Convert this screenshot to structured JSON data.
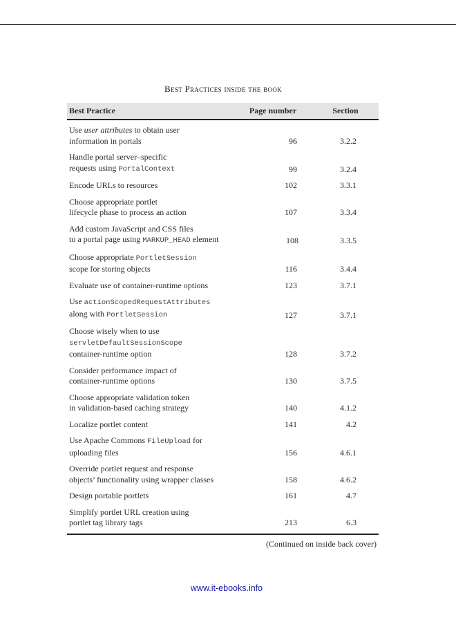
{
  "title": "Best Practices inside the book",
  "table": {
    "headers": [
      "Best Practice",
      "Page number",
      "Section"
    ],
    "rows": [
      {
        "lines": [
          [
            {
              "t": "Use "
            },
            {
              "t": "user attributes",
              "s": "it"
            },
            {
              "t": " to obtain user"
            }
          ],
          [
            {
              "t": "information in portals"
            }
          ]
        ],
        "page": "96",
        "section": "3.2.2"
      },
      {
        "lines": [
          [
            {
              "t": "Handle portal server–specific"
            }
          ],
          [
            {
              "t": "requests using "
            },
            {
              "t": "PortalContext",
              "s": "mono"
            }
          ]
        ],
        "page": "99",
        "section": "3.2.4"
      },
      {
        "lines": [
          [
            {
              "t": "Encode URLs to resources"
            }
          ]
        ],
        "page": "102",
        "section": "3.3.1"
      },
      {
        "lines": [
          [
            {
              "t": "Choose appropriate portlet"
            }
          ],
          [
            {
              "t": "lifecycle phase to process an action"
            }
          ]
        ],
        "page": "107",
        "section": "3.3.4"
      },
      {
        "lines": [
          [
            {
              "t": "Add custom JavaScript and CSS files"
            }
          ],
          [
            {
              "t": "to a portal page using "
            },
            {
              "t": "MARKUP_HEAD",
              "s": "mono"
            },
            {
              "t": " element"
            }
          ]
        ],
        "page": "108",
        "section": "3.3.5"
      },
      {
        "lines": [
          [
            {
              "t": "Choose appropriate "
            },
            {
              "t": "PortletSession",
              "s": "mono"
            }
          ],
          [
            {
              "t": "scope for storing objects"
            }
          ]
        ],
        "page": "116",
        "section": "3.4.4"
      },
      {
        "lines": [
          [
            {
              "t": "Evaluate use of container-runtime options"
            }
          ]
        ],
        "page": "123",
        "section": "3.7.1"
      },
      {
        "lines": [
          [
            {
              "t": "Use "
            },
            {
              "t": "actionScopedRequestAttributes",
              "s": "mono"
            }
          ],
          [
            {
              "t": "along with "
            },
            {
              "t": "PortletSession",
              "s": "mono"
            }
          ]
        ],
        "page": "127",
        "section": "3.7.1"
      },
      {
        "lines": [
          [
            {
              "t": "Choose wisely when to use"
            }
          ],
          [
            {
              "t": "servletDefaultSessionScope",
              "s": "mono"
            }
          ],
          [
            {
              "t": "container-runtime option"
            }
          ]
        ],
        "page": "128",
        "section": "3.7.2"
      },
      {
        "lines": [
          [
            {
              "t": "Consider performance impact of"
            }
          ],
          [
            {
              "t": "container-runtime options"
            }
          ]
        ],
        "page": "130",
        "section": "3.7.5"
      },
      {
        "lines": [
          [
            {
              "t": "Choose appropriate validation token"
            }
          ],
          [
            {
              "t": "in validation-based caching strategy"
            }
          ]
        ],
        "page": "140",
        "section": "4.1.2"
      },
      {
        "lines": [
          [
            {
              "t": "Localize portlet content"
            }
          ]
        ],
        "page": "141",
        "section": "4.2"
      },
      {
        "lines": [
          [
            {
              "t": "Use Apache Commons "
            },
            {
              "t": "FileUpload",
              "s": "mono"
            },
            {
              "t": " for"
            }
          ],
          [
            {
              "t": "uploading files"
            }
          ]
        ],
        "page": "156",
        "section": "4.6.1"
      },
      {
        "lines": [
          [
            {
              "t": "Override portlet request and response"
            }
          ],
          [
            {
              "t": "objects’ functionality using wrapper classes"
            }
          ]
        ],
        "page": "158",
        "section": "4.6.2"
      },
      {
        "lines": [
          [
            {
              "t": "Design portable portlets"
            }
          ]
        ],
        "page": "161",
        "section": "4.7"
      },
      {
        "lines": [
          [
            {
              "t": "Simplify portlet URL creation using"
            }
          ],
          [
            {
              "t": "portlet tag library tags"
            }
          ]
        ],
        "page": "213",
        "section": "6.3"
      }
    ],
    "continued": "(Continued on inside back cover)"
  },
  "footer": {
    "link": "www.it-ebooks.info"
  }
}
